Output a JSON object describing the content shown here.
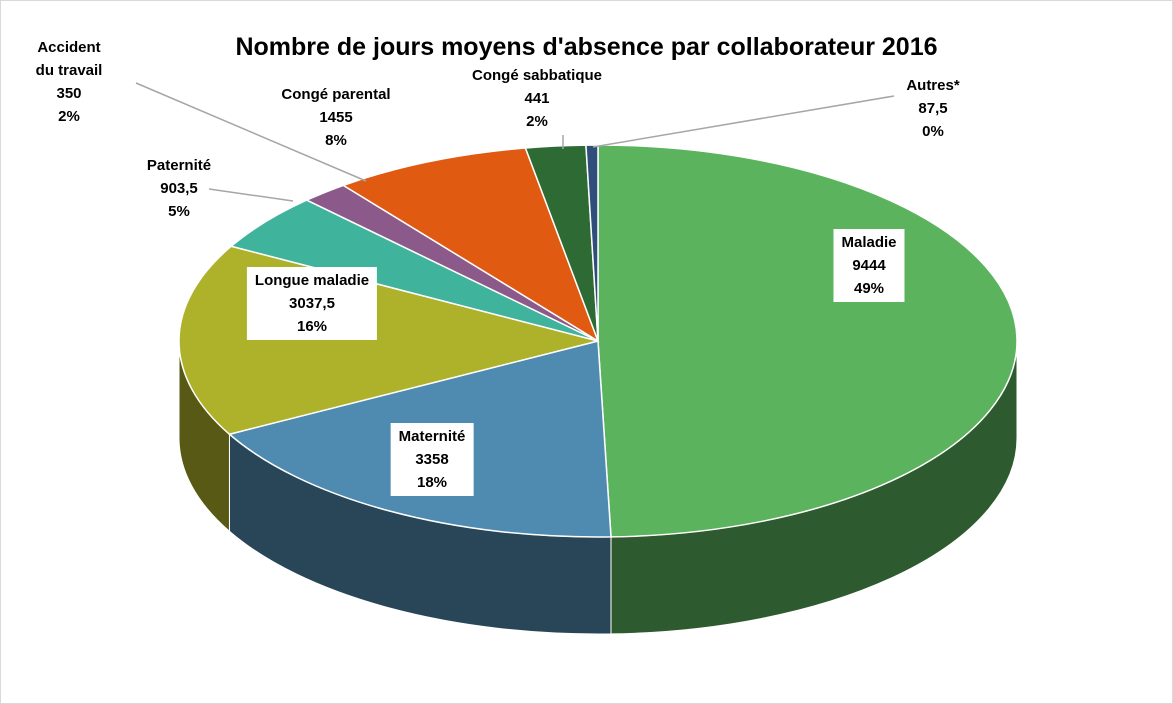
{
  "chart_data": {
    "type": "pie3d",
    "title": "Nombre de jours moyens d'absence par collaborateur 2016",
    "categories": [
      "Maladie",
      "Maternité",
      "Longue maladie",
      "Paternité",
      "Accident du travail",
      "Congé parental",
      "Congé sabbatique",
      "Autres*"
    ],
    "values": [
      9444,
      3358,
      3037.5,
      903.5,
      350,
      1455,
      441,
      87.5
    ],
    "value_labels": [
      "9444",
      "3358",
      "3037,5",
      "903,5",
      "350",
      "1455",
      "441",
      "87,5"
    ],
    "percent_labels": [
      "49%",
      "18%",
      "16%",
      "5%",
      "2%",
      "8%",
      "2%",
      "0%"
    ],
    "colors": [
      "#5bb35e",
      "#4f8bb0",
      "#adb22a",
      "#3fb39b",
      "#8b5a8b",
      "#e05a12",
      "#2e6b34",
      "#2f4f7a"
    ]
  }
}
